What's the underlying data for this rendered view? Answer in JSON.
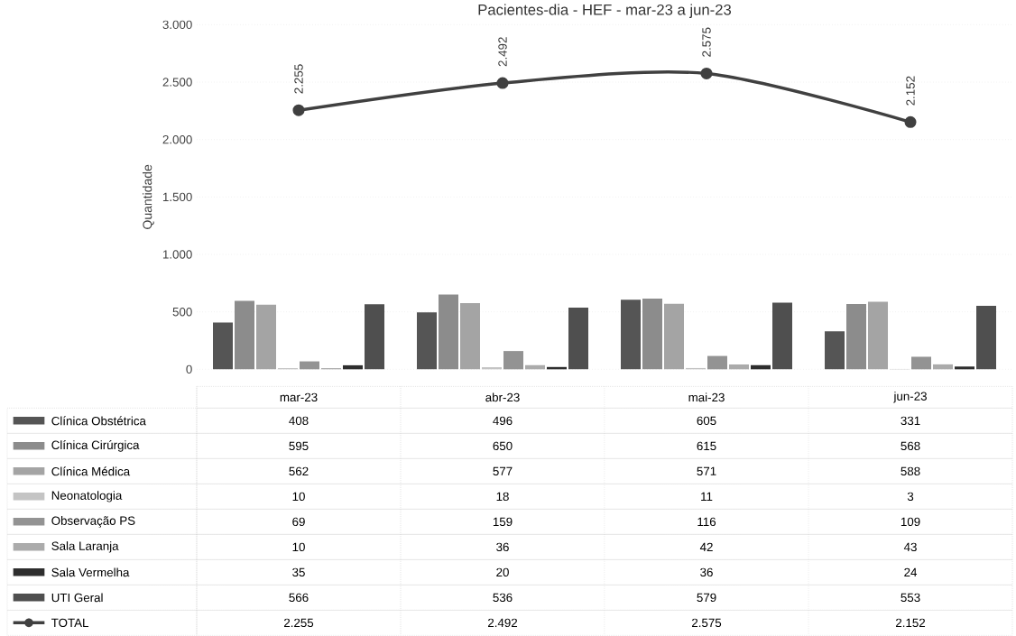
{
  "chart_data": {
    "type": "bar",
    "title": "Pacientes-dia - HEF - mar-23 a jun-23",
    "ylabel": "Quantidade",
    "categories": [
      "mar-23",
      "abr-23",
      "mai-23",
      "jun-23"
    ],
    "series": [
      {
        "name": "Clínica Obstétrica",
        "color": "#555555",
        "values": [
          408,
          496,
          605,
          331
        ],
        "value_labels": [
          "408",
          "496",
          "605",
          "331"
        ]
      },
      {
        "name": "Clínica Cirúrgica",
        "color": "#8c8c8c",
        "values": [
          595,
          650,
          615,
          568
        ],
        "value_labels": [
          "595",
          "650",
          "615",
          "568"
        ]
      },
      {
        "name": "Clínica Médica",
        "color": "#a4a4a4",
        "values": [
          562,
          577,
          571,
          588
        ],
        "value_labels": [
          "562",
          "577",
          "571",
          "588"
        ]
      },
      {
        "name": "Neonatologia",
        "color": "#c4c4c4",
        "values": [
          10,
          18,
          11,
          3
        ],
        "value_labels": [
          "10",
          "18",
          "11",
          "3"
        ]
      },
      {
        "name": "Observação PS",
        "color": "#939393",
        "values": [
          69,
          159,
          116,
          109
        ],
        "value_labels": [
          "69",
          "159",
          "116",
          "109"
        ]
      },
      {
        "name": "Sala Laranja",
        "color": "#ababab",
        "values": [
          10,
          36,
          42,
          43
        ],
        "value_labels": [
          "10",
          "36",
          "42",
          "43"
        ]
      },
      {
        "name": "Sala Vermelha",
        "color": "#2e2e2e",
        "values": [
          35,
          20,
          36,
          24
        ],
        "value_labels": [
          "35",
          "20",
          "36",
          "24"
        ]
      },
      {
        "name": "UTI Geral",
        "color": "#4f4f4f",
        "values": [
          566,
          536,
          579,
          553
        ],
        "value_labels": [
          "566",
          "536",
          "579",
          "553"
        ]
      },
      {
        "name": "TOTAL",
        "type": "line",
        "color": "#404040",
        "marker": "circle",
        "values": [
          2255,
          2492,
          2575,
          2152
        ],
        "value_labels": [
          "2.255",
          "2.492",
          "2.575",
          "2.152"
        ]
      }
    ],
    "ylim": [
      0,
      3000
    ],
    "yticks": [
      0,
      500,
      {
        "value": 1000,
        "label": "1.000"
      },
      {
        "value": 1500,
        "label": "1.500"
      },
      {
        "value": 2000,
        "label": "2.000"
      },
      {
        "value": 2500,
        "label": "2.500"
      },
      {
        "value": 3000,
        "label": "3.000"
      }
    ],
    "grid": "y",
    "legend": "bottom"
  }
}
